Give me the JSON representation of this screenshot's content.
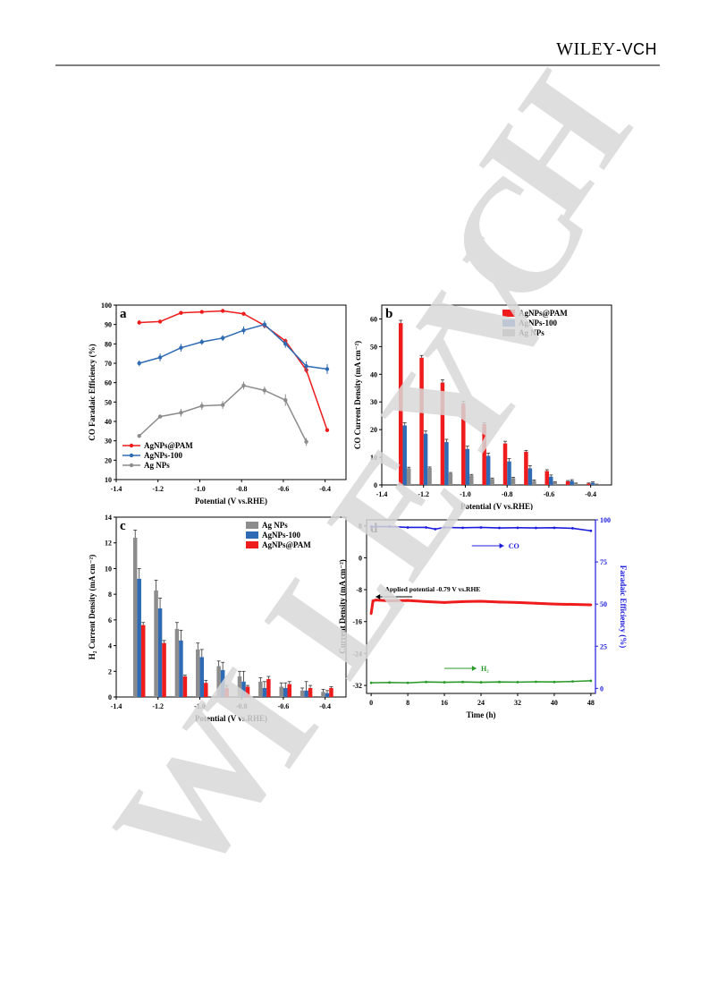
{
  "header": {
    "publisher_main": "WILEY",
    "publisher_suffix": "-VCH"
  },
  "watermark": {
    "letters": [
      "W",
      "I",
      "L",
      "E",
      "Y",
      "V",
      "C",
      "H"
    ]
  },
  "colors": {
    "pam": "#ee1c1c",
    "ag100": "#2e6bb4",
    "ag": "#8c8c8c",
    "co_line": "#1c1cdc",
    "h2_line": "#2a9a2a"
  },
  "chart_data": [
    {
      "id": "a",
      "type": "line",
      "panel_label": "a",
      "xlabel": "Potential (V vs.RHE)",
      "ylabel": "CO Faradaic Efficiency (%)",
      "xlim": [
        -1.4,
        -0.3
      ],
      "ylim": [
        10,
        100
      ],
      "xticks": [
        -1.4,
        -1.2,
        -1.0,
        -0.8,
        -0.6,
        -0.4
      ],
      "xtick_labels": [
        "-1.4",
        "-1.2",
        "-1.0",
        "-0.8",
        "-0.6",
        "-0.4"
      ],
      "yticks": [
        10,
        20,
        30,
        40,
        50,
        60,
        70,
        80,
        90,
        100
      ],
      "ytick_labels": [
        "10",
        "20",
        "30",
        "40",
        "50",
        "60",
        "70",
        "80",
        "90",
        "100"
      ],
      "legend_position": "bottom-left",
      "series": [
        {
          "name": "AgNPs@PAM",
          "color": "#ee1c1c",
          "x": [
            -1.29,
            -1.19,
            -1.09,
            -0.99,
            -0.89,
            -0.79,
            -0.69,
            -0.59,
            -0.49,
            -0.39
          ],
          "y": [
            91,
            91.5,
            96,
            96.5,
            97,
            95.5,
            89.5,
            81.5,
            66.5,
            35.5
          ],
          "err": [
            1.2,
            0.8,
            0.8,
            0.8,
            0.6,
            0.8,
            1.2,
            1.2,
            1.5,
            0.8
          ]
        },
        {
          "name": "AgNPs-100",
          "color": "#2e6bb4",
          "x": [
            -1.29,
            -1.19,
            -1.09,
            -0.99,
            -0.89,
            -0.79,
            -0.69,
            -0.59,
            -0.49,
            -0.39
          ],
          "y": [
            70,
            73,
            78,
            81,
            83,
            87,
            90,
            80,
            68.5,
            67
          ],
          "err": [
            1.5,
            2,
            2,
            1.5,
            1.5,
            2,
            2,
            2,
            2.5,
            2.5
          ]
        },
        {
          "name": "Ag NPs",
          "color": "#8c8c8c",
          "x": [
            -1.29,
            -1.19,
            -1.09,
            -0.99,
            -0.89,
            -0.79,
            -0.69,
            -0.59,
            -0.49
          ],
          "y": [
            32.5,
            42.5,
            44.5,
            48,
            48.5,
            58.5,
            56,
            51,
            29.5
          ],
          "err": [
            1,
            1,
            2,
            2,
            2,
            2,
            2,
            3,
            2
          ]
        }
      ]
    },
    {
      "id": "b",
      "type": "bar",
      "panel_label": "b",
      "xlabel": "Potential (V vs.RHE)",
      "ylabel": "CO Current Density (mA cm⁻²)",
      "xlim": [
        -1.4,
        -0.3
      ],
      "ylim": [
        0,
        65
      ],
      "xticks": [
        -1.4,
        -1.2,
        -1.0,
        -0.8,
        -0.6,
        -0.4
      ],
      "xtick_labels": [
        "-1.4",
        "-1.2",
        "-1.0",
        "-0.8",
        "-0.6",
        "-0.4"
      ],
      "yticks": [
        0,
        10,
        20,
        30,
        40,
        50,
        60
      ],
      "ytick_labels": [
        "0",
        "10",
        "20",
        "30",
        "40",
        "50",
        "60"
      ],
      "legend_position": "top-right",
      "x": [
        -1.29,
        -1.19,
        -1.09,
        -0.99,
        -0.89,
        -0.79,
        -0.69,
        -0.59,
        -0.49,
        -0.39
      ],
      "series": [
        {
          "name": "AgNPs@PAM",
          "color": "#ee1c1c",
          "values": [
            58.5,
            46,
            37,
            29.5,
            22,
            15,
            12,
            5,
            1.3,
            0.5
          ],
          "err": [
            1,
            0.8,
            1,
            0.8,
            0.5,
            0.8,
            0.5,
            0.5,
            0.3,
            0.2
          ]
        },
        {
          "name": "AgNPs-100",
          "color": "#2e6bb4",
          "values": [
            21.5,
            18.5,
            15.5,
            13,
            10.5,
            8.5,
            6,
            3,
            1.5,
            0.8
          ],
          "err": [
            1,
            1,
            1,
            1,
            1,
            1,
            1,
            0.6,
            0.4,
            0.3
          ]
        },
        {
          "name": "Ag NPs",
          "color": "#8c8c8c",
          "values": [
            6,
            6.2,
            4.2,
            3.5,
            2.2,
            2.5,
            1.5,
            1,
            0.5,
            0.2
          ],
          "err": [
            0.4,
            0.3,
            0.3,
            0.3,
            0.3,
            0.3,
            0.3,
            0.2,
            0.2,
            0.1
          ]
        }
      ]
    },
    {
      "id": "c",
      "type": "bar",
      "panel_label": "c",
      "xlabel": "Potential (V vs.RHE)",
      "ylabel": "H₂ Current Density (mA cm⁻²)",
      "xlim": [
        -1.4,
        -0.3
      ],
      "ylim": [
        0,
        14
      ],
      "xticks": [
        -1.4,
        -1.2,
        -1.0,
        -0.8,
        -0.6,
        -0.4
      ],
      "xtick_labels": [
        "-1.4",
        "-1.2",
        "-1.0",
        "-0.8",
        "-0.6",
        "-0.4"
      ],
      "yticks": [
        0,
        2,
        4,
        6,
        8,
        10,
        12,
        14
      ],
      "ytick_labels": [
        "0",
        "2",
        "4",
        "6",
        "8",
        "10",
        "12",
        "14"
      ],
      "legend_position": "top-right",
      "x": [
        -1.29,
        -1.19,
        -1.09,
        -0.99,
        -0.89,
        -0.79,
        -0.69,
        -0.59,
        -0.49,
        -0.39
      ],
      "series": [
        {
          "name": "Ag NPs",
          "color": "#8c8c8c",
          "values": [
            12.4,
            8.3,
            5.3,
            3.7,
            2.4,
            1.6,
            1.2,
            0.8,
            0.5,
            0.4
          ],
          "err": [
            0.6,
            0.8,
            0.5,
            0.5,
            0.4,
            0.4,
            0.3,
            0.3,
            0.2,
            0.2
          ]
        },
        {
          "name": "AgNPs-100",
          "color": "#2e6bb4",
          "values": [
            9.2,
            6.9,
            4.4,
            3.1,
            2.1,
            1.2,
            0.7,
            0.7,
            0.5,
            0.3
          ],
          "err": [
            0.8,
            0.8,
            0.8,
            0.6,
            0.6,
            0.8,
            0.5,
            0.4,
            0.7,
            0.2
          ]
        },
        {
          "name": "AgNPs@PAM",
          "color": "#ee1c1c",
          "values": [
            5.6,
            4.2,
            1.6,
            1.1,
            0.7,
            0.8,
            1.4,
            1.0,
            0.7,
            0.7
          ],
          "err": [
            0.2,
            0.2,
            0.1,
            0.2,
            0.2,
            0.1,
            0.2,
            0.2,
            0.2,
            0.1
          ]
        }
      ]
    },
    {
      "id": "d",
      "type": "line",
      "panel_label": "d",
      "xlabel": "Time (h)",
      "ylabel": "Current Density (mA cm⁻²)",
      "ylabel_right": "Faradaic Efficiency (%)",
      "xlim": [
        -1,
        49
      ],
      "ylim": [
        -34,
        9.5
      ],
      "ylim_right": [
        -3,
        100
      ],
      "xticks": [
        0,
        8,
        16,
        24,
        32,
        40,
        48
      ],
      "xtick_labels": [
        "0",
        "8",
        "16",
        "24",
        "32",
        "40",
        "48"
      ],
      "yticks": [
        -32,
        -24,
        -16,
        -8,
        0,
        8
      ],
      "ytick_labels": [
        "-32",
        "-24",
        "-16",
        "-8",
        "0",
        "8"
      ],
      "yticks_right": [
        0,
        25,
        50,
        75,
        100
      ],
      "ytick_labels_right": [
        "0",
        "25",
        "50",
        "75",
        "100"
      ],
      "annotation_applied": "Applied potential -0.79 V vs.RHE",
      "annotation_co": "CO",
      "annotation_h2": "H₂",
      "series": [
        {
          "name": "current",
          "color": "#ee1c1c",
          "axis": "left",
          "x": [
            0,
            0.4,
            1,
            4,
            8,
            12,
            16,
            20,
            24,
            28,
            32,
            36,
            40,
            44,
            48
          ],
          "y": [
            -14,
            -10.8,
            -10.6,
            -10.8,
            -10.7,
            -11.0,
            -11.2,
            -11.0,
            -10.9,
            -11.1,
            -11.2,
            -11.4,
            -11.6,
            -11.7,
            -11.8
          ]
        },
        {
          "name": "CO",
          "color": "#1c1cdc",
          "axis": "right",
          "x": [
            0,
            4,
            8,
            12,
            14,
            16,
            20,
            24,
            28,
            32,
            36,
            40,
            44,
            48
          ],
          "y": [
            96,
            96,
            95.5,
            95.5,
            94.5,
            95.5,
            95.3,
            95.5,
            95.2,
            95.3,
            95.2,
            95.3,
            95.0,
            93.5
          ]
        },
        {
          "name": "H2",
          "color": "#2a9a2a",
          "axis": "right",
          "x": [
            0,
            4,
            8,
            12,
            16,
            20,
            24,
            28,
            32,
            36,
            40,
            44,
            48
          ],
          "y": [
            3.3,
            3.5,
            3.3,
            3.8,
            3.6,
            3.8,
            3.6,
            3.8,
            3.7,
            3.9,
            3.8,
            4.1,
            4.5
          ]
        }
      ]
    }
  ]
}
